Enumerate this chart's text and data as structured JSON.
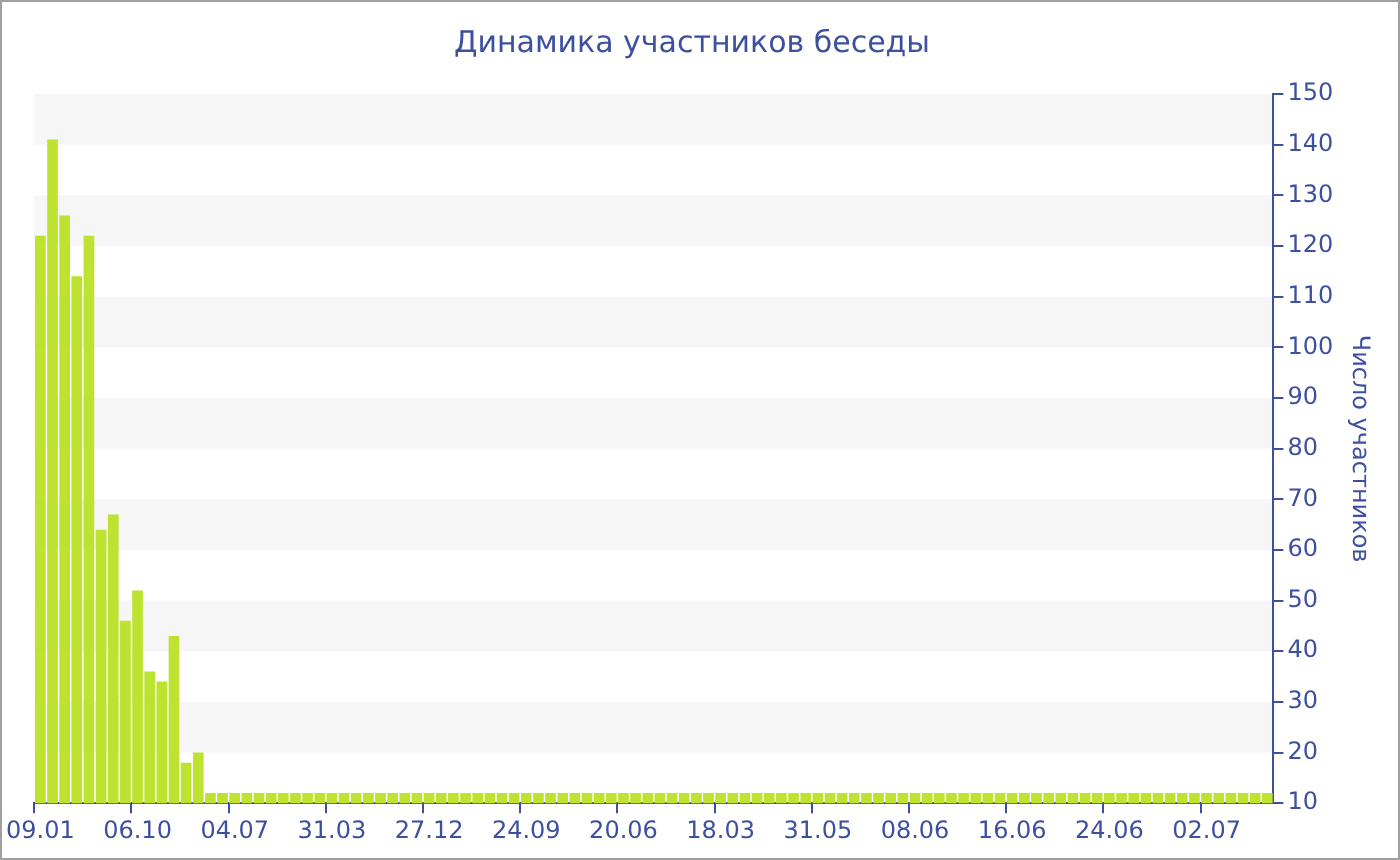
{
  "chart_data": {
    "type": "bar",
    "title": "Динамика участников беседы",
    "ylabel": "Число участников",
    "categories": [
      "09.01",
      null,
      null,
      null,
      null,
      null,
      null,
      null,
      "06.10",
      null,
      null,
      null,
      null,
      null,
      null,
      null,
      "04.07",
      null,
      null,
      null,
      null,
      null,
      null,
      null,
      "31.03",
      null,
      null,
      null,
      null,
      null,
      null,
      null,
      "27.12",
      null,
      null,
      null,
      null,
      null,
      null,
      null,
      "24.09",
      null,
      null,
      null,
      null,
      null,
      null,
      null,
      "20.06",
      null,
      null,
      null,
      null,
      null,
      null,
      null,
      "18.03",
      null,
      null,
      null,
      null,
      null,
      null,
      null,
      "31.05",
      null,
      null,
      null,
      null,
      null,
      null,
      null,
      "08.06",
      null,
      null,
      null,
      null,
      null,
      null,
      null,
      "16.06",
      null,
      null,
      null,
      null,
      null,
      null,
      null,
      "24.06",
      null,
      null,
      null,
      null,
      null,
      null,
      null,
      "02.07",
      null,
      null,
      null,
      null,
      null
    ],
    "values": [
      122,
      141,
      126,
      114,
      122,
      64,
      67,
      46,
      52,
      36,
      34,
      43,
      18,
      20,
      12,
      12,
      12,
      12,
      12,
      12,
      12,
      12,
      12,
      12,
      12,
      12,
      12,
      12,
      12,
      12,
      12,
      12,
      12,
      12,
      12,
      12,
      12,
      12,
      12,
      12,
      12,
      12,
      12,
      12,
      12,
      12,
      12,
      12,
      12,
      12,
      12,
      12,
      12,
      12,
      12,
      12,
      12,
      12,
      12,
      12,
      12,
      12,
      12,
      12,
      12,
      12,
      12,
      12,
      12,
      12,
      12,
      12,
      12,
      12,
      12,
      12,
      12,
      12,
      12,
      12,
      12,
      12,
      12,
      12,
      12,
      12,
      12,
      12,
      12,
      12,
      12,
      12,
      12,
      12,
      12,
      12,
      12,
      12,
      12,
      12,
      12,
      12
    ],
    "color": "#bde230",
    "ylim": [
      10,
      150
    ],
    "yticks": [
      10,
      20,
      30,
      40,
      50,
      60,
      70,
      80,
      90,
      100,
      110,
      120,
      130,
      140,
      150
    ],
    "legend": false
  }
}
